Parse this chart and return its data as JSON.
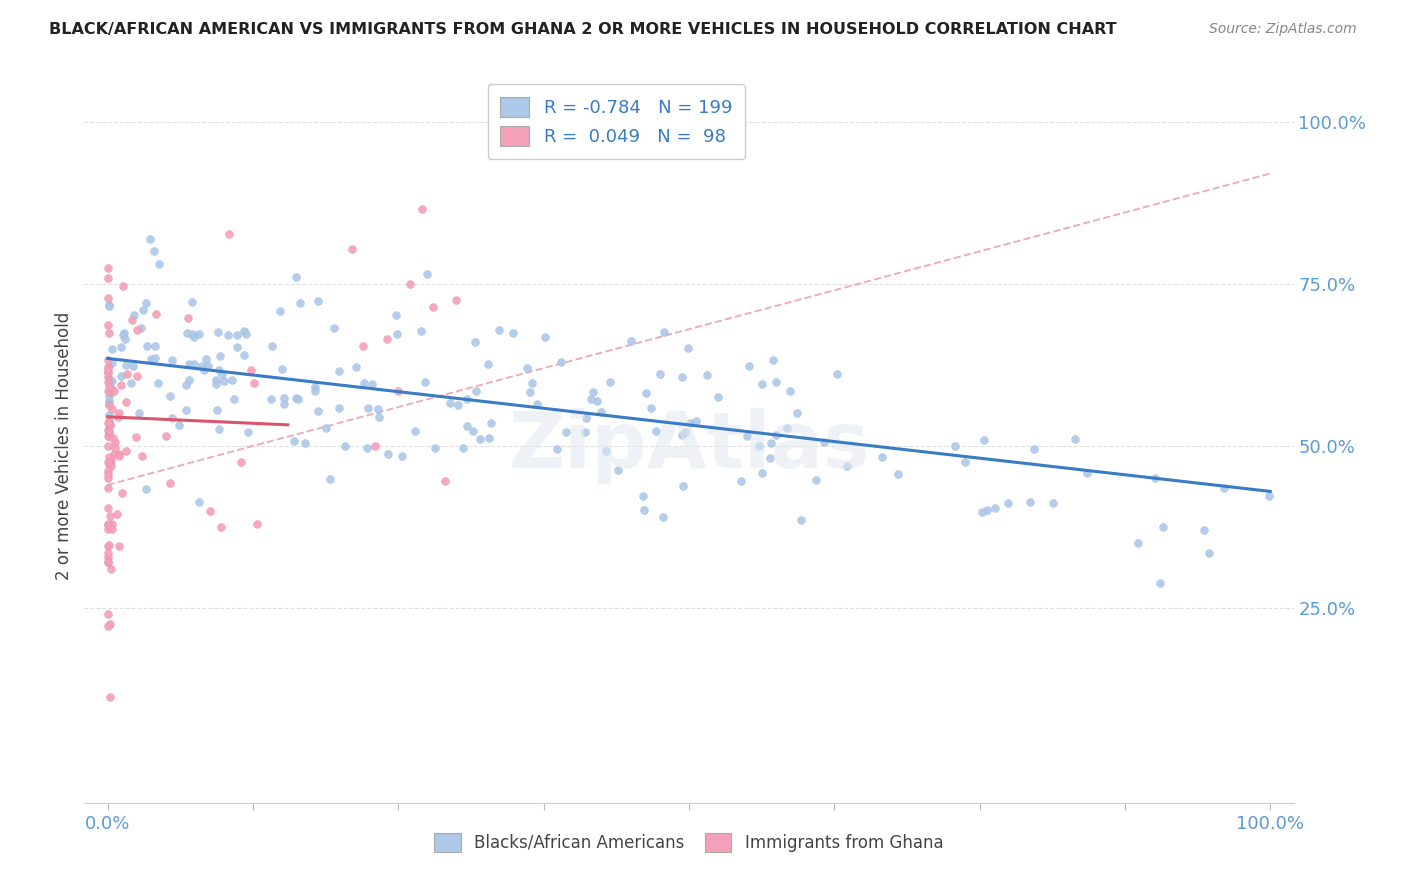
{
  "title": "BLACK/AFRICAN AMERICAN VS IMMIGRANTS FROM GHANA 2 OR MORE VEHICLES IN HOUSEHOLD CORRELATION CHART",
  "source": "Source: ZipAtlas.com",
  "ylabel": "2 or more Vehicles in Household",
  "blue_color": "#adc8e8",
  "pink_color": "#f4a0b8",
  "blue_line_color": "#3a7cc4",
  "pink_line_color": "#d9566e",
  "dashed_line_color": "#e8a0b0",
  "background_color": "#ffffff",
  "watermark": "ZipAtlas",
  "grid_color": "#dddddd",
  "tick_color": "#5b9bd5",
  "title_color": "#222222",
  "source_color": "#888888",
  "R_blue": -0.784,
  "N_blue": 199,
  "R_pink": 0.049,
  "N_pink": 98,
  "ylim_low": -0.05,
  "ylim_high": 1.05,
  "xlim_low": -0.02,
  "xlim_high": 1.02
}
